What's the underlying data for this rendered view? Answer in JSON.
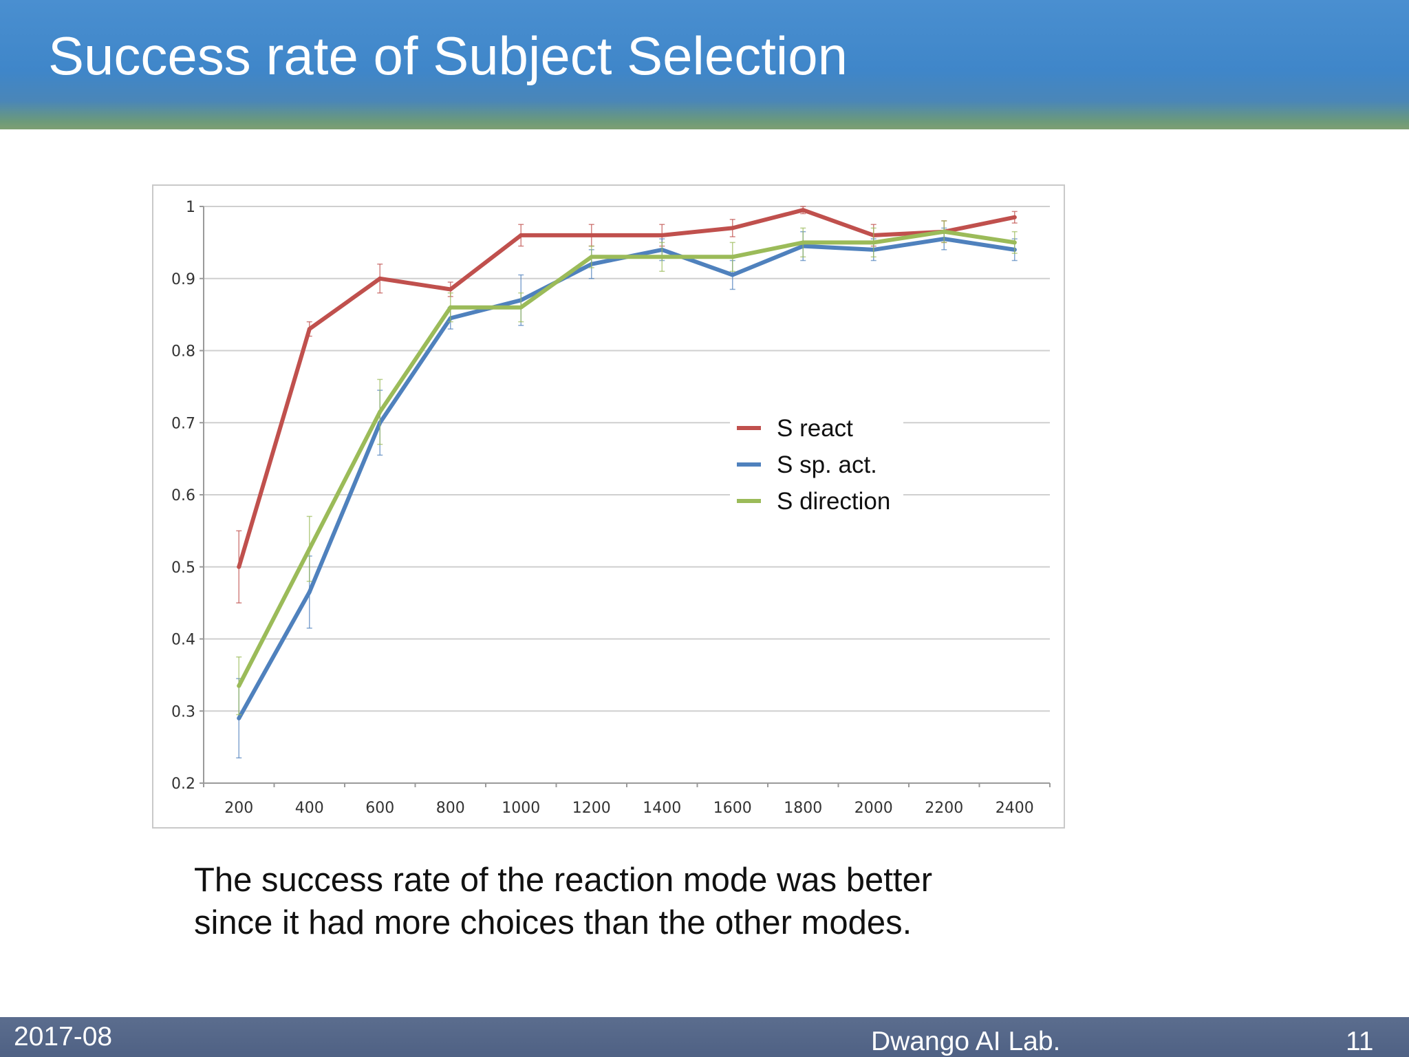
{
  "slide": {
    "title": "Success rate of Subject Selection",
    "caption_lines": [
      "The success rate of the reaction mode was better",
      "since it had more choices than the other modes."
    ]
  },
  "footer": {
    "date": "2017-08",
    "organization": "Dwango AI Lab.",
    "page_number": "11"
  },
  "chart_data": {
    "type": "line",
    "title": "",
    "xlabel": "",
    "ylabel": "",
    "categories": [
      "200",
      "400",
      "600",
      "800",
      "1000",
      "1200",
      "1400",
      "1600",
      "1800",
      "2000",
      "2200",
      "2400"
    ],
    "ylim": [
      0.2,
      1
    ],
    "yticks": [
      "0.2",
      "0.3",
      "0.4",
      "0.5",
      "0.6",
      "0.7",
      "0.8",
      "0.9",
      "1"
    ],
    "grid": true,
    "legend_position": "center-right",
    "series": [
      {
        "name": "S react",
        "color": "#c0504d",
        "values": [
          0.5,
          0.83,
          0.9,
          0.885,
          0.96,
          0.96,
          0.96,
          0.97,
          0.995,
          0.96,
          0.965,
          0.985
        ],
        "error": [
          0.05,
          0.01,
          0.02,
          0.01,
          0.015,
          0.015,
          0.015,
          0.012,
          0.005,
          0.015,
          0.015,
          0.008
        ]
      },
      {
        "name": "S sp. act.",
        "color": "#4f81bd",
        "values": [
          0.29,
          0.465,
          0.7,
          0.845,
          0.87,
          0.92,
          0.94,
          0.905,
          0.945,
          0.94,
          0.955,
          0.94
        ],
        "error": [
          0.055,
          0.05,
          0.045,
          0.015,
          0.035,
          0.02,
          0.015,
          0.02,
          0.02,
          0.015,
          0.015,
          0.015
        ]
      },
      {
        "name": "S direction",
        "color": "#9bbb59",
        "values": [
          0.335,
          0.525,
          0.715,
          0.86,
          0.86,
          0.93,
          0.93,
          0.93,
          0.95,
          0.95,
          0.965,
          0.95
        ],
        "error": [
          0.04,
          0.045,
          0.045,
          0.02,
          0.02,
          0.015,
          0.02,
          0.02,
          0.02,
          0.02,
          0.015,
          0.015
        ]
      }
    ]
  }
}
